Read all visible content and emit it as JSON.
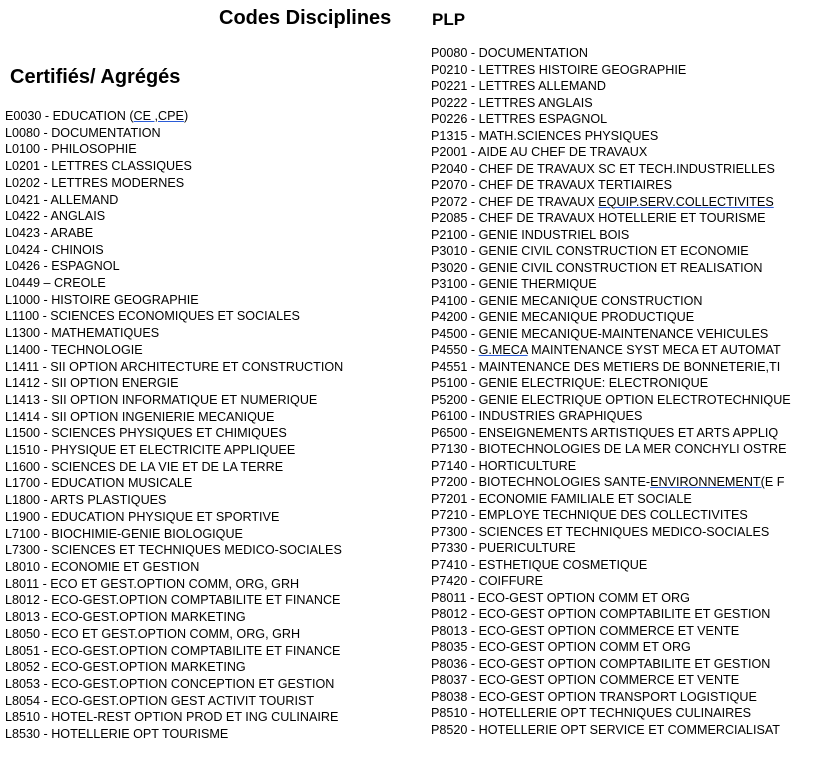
{
  "header": {
    "title": "Codes Disciplines"
  },
  "certifies": {
    "title": "Certifiés/ Agrégés",
    "items": [
      {
        "pre": "E0030 - EDUCATION (",
        "ul": "CE ,CPE",
        "post": ")"
      },
      {
        "pre": "L0080 - DOCUMENTATION"
      },
      {
        "pre": "L0100 - PHILOSOPHIE"
      },
      {
        "pre": "L0201 - LETTRES CLASSIQUES"
      },
      {
        "pre": "L0202 - LETTRES MODERNES"
      },
      {
        "pre": "L0421 - ALLEMAND"
      },
      {
        "pre": "L0422 - ANGLAIS"
      },
      {
        "pre": "L0423 - ARABE"
      },
      {
        "pre": "L0424 - CHINOIS"
      },
      {
        "pre": "L0426 - ESPAGNOL"
      },
      {
        "pre": "L0449 – CREOLE"
      },
      {
        "pre": "L1000 - HISTOIRE GEOGRAPHIE"
      },
      {
        "pre": "L1100 - SCIENCES ECONOMIQUES ET SOCIALES"
      },
      {
        "pre": "L1300 - MATHEMATIQUES"
      },
      {
        "pre": "L1400 - TECHNOLOGIE"
      },
      {
        "pre": "L1411 - SII OPTION ARCHITECTURE ET CONSTRUCTION"
      },
      {
        "pre": "L1412 - SII OPTION ENERGIE"
      },
      {
        "pre": "L1413 - SII OPTION INFORMATIQUE ET NUMERIQUE"
      },
      {
        "pre": "L1414 - SII OPTION INGENIERIE MECANIQUE"
      },
      {
        "pre": "L1500 - SCIENCES PHYSIQUES ET CHIMIQUES"
      },
      {
        "pre": "L1510 - PHYSIQUE ET ELECTRICITE APPLIQUEE"
      },
      {
        "pre": "L1600 - SCIENCES DE LA VIE ET DE LA TERRE"
      },
      {
        "pre": "L1700 - EDUCATION MUSICALE"
      },
      {
        "pre": "L1800 - ARTS PLASTIQUES"
      },
      {
        "pre": "L1900 - EDUCATION PHYSIQUE ET SPORTIVE"
      },
      {
        "pre": "L7100 - BIOCHIMIE-GENIE BIOLOGIQUE"
      },
      {
        "pre": "L7300 - SCIENCES ET TECHNIQUES MEDICO-SOCIALES"
      },
      {
        "pre": "L8010 - ECONOMIE ET GESTION"
      },
      {
        "pre": "L8011 - ECO ET GEST.OPTION COMM, ORG, GRH"
      },
      {
        "pre": "L8012 - ECO-GEST.OPTION COMPTABILITE ET FINANCE"
      },
      {
        "pre": "L8013 - ECO-GEST.OPTION MARKETING"
      },
      {
        "pre": "L8050 - ECO ET GEST.OPTION COMM, ORG, GRH"
      },
      {
        "pre": "L8051 - ECO-GEST.OPTION COMPTABILITE ET FINANCE"
      },
      {
        "pre": "L8052 - ECO-GEST.OPTION MARKETING"
      },
      {
        "pre": "L8053 - ECO-GEST.OPTION CONCEPTION ET GESTION"
      },
      {
        "pre": "L8054 - ECO-GEST.OPTION GEST ACTIVIT TOURIST"
      },
      {
        "pre": "L8510 - HOTEL-REST OPTION PROD ET ING CULINAIRE"
      },
      {
        "pre": "L8530 - HOTELLERIE OPT TOURISME"
      }
    ]
  },
  "plp": {
    "title": "PLP",
    "items": [
      {
        "pre": "P0080 - DOCUMENTATION"
      },
      {
        "pre": "P0210 - LETTRES HISTOIRE GEOGRAPHIE"
      },
      {
        "pre": "P0221 - LETTRES ALLEMAND"
      },
      {
        "pre": "P0222 - LETTRES ANGLAIS"
      },
      {
        "pre": "P0226 - LETTRES ESPAGNOL"
      },
      {
        "pre": "P1315 - MATH.SCIENCES PHYSIQUES"
      },
      {
        "pre": "P2001 - AIDE AU CHEF DE TRAVAUX"
      },
      {
        "pre": "P2040 - CHEF DE TRAVAUX SC ET TECH.INDUSTRIELLES"
      },
      {
        "pre": "P2070 - CHEF DE TRAVAUX TERTIAIRES"
      },
      {
        "pre": "P2072 - CHEF DE TRAVAUX ",
        "ul": "EQUIP.SERV.COLLECTIVITES"
      },
      {
        "pre": "P2085 - CHEF DE TRAVAUX HOTELLERIE ET TOURISME"
      },
      {
        "pre": "P2100 - GENIE INDUSTRIEL BOIS"
      },
      {
        "pre": "P3010 - GENIE CIVIL CONSTRUCTION ET ECONOMIE"
      },
      {
        "pre": "P3020 - GENIE CIVIL CONSTRUCTION ET REALISATION"
      },
      {
        "pre": "P3100 - GENIE THERMIQUE"
      },
      {
        "pre": "P4100 - GENIE MECANIQUE CONSTRUCTION"
      },
      {
        "pre": "P4200 - GENIE MECANIQUE PRODUCTIQUE"
      },
      {
        "pre": "P4500 - GENIE MECANIQUE-MAINTENANCE VEHICULES"
      },
      {
        "pre": "P4550 - ",
        "ul": "G.MECA",
        "post": " MAINTENANCE SYST MECA ET AUTOMAT"
      },
      {
        "pre": "P4551 - MAINTENANCE DES METIERS DE BONNETERIE,TI"
      },
      {
        "pre": "P5100 - GENIE ELECTRIQUE: ELECTRONIQUE"
      },
      {
        "pre": "P5200 - GENIE ELECTRIQUE OPTION ELECTROTECHNIQUE"
      },
      {
        "pre": "P6100 - INDUSTRIES GRAPHIQUES"
      },
      {
        "pre": "P6500 - ENSEIGNEMENTS ARTISTIQUES ET ARTS APPLIQ"
      },
      {
        "pre": "P7130 - BIOTECHNOLOGIES DE LA MER CONCHYLI OSTRE"
      },
      {
        "pre": "P7140 - HORTICULTURE"
      },
      {
        "pre": "P7200 - BIOTECHNOLOGIES SANTE-",
        "ul": "ENVIRONNEMENT(",
        "post": "E F"
      },
      {
        "pre": "P7201 - ECONOMIE FAMILIALE ET SOCIALE"
      },
      {
        "pre": "P7210 - EMPLOYE TECHNIQUE DES COLLECTIVITES"
      },
      {
        "pre": "P7300 - SCIENCES ET TECHNIQUES MEDICO-SOCIALES"
      },
      {
        "pre": "P7330 - PUERICULTURE"
      },
      {
        "pre": "P7410 - ESTHETIQUE COSMETIQUE"
      },
      {
        "pre": "P7420 - COIFFURE"
      },
      {
        "pre": "P8011 - ECO-GEST OPTION COMM ET ORG"
      },
      {
        "pre": "P8012 - ECO-GEST OPTION COMPTABILITE ET GESTION"
      },
      {
        "pre": "P8013 - ECO-GEST OPTION COMMERCE ET VENTE"
      },
      {
        "pre": "P8035 - ECO-GEST OPTION COMM ET ORG"
      },
      {
        "pre": "P8036 - ECO-GEST OPTION COMPTABILITE ET GESTION"
      },
      {
        "pre": "P8037 - ECO-GEST OPTION COMMERCE ET VENTE"
      },
      {
        "pre": "P8038 - ECO-GEST OPTION TRANSPORT LOGISTIQUE"
      },
      {
        "pre": "P8510 - HOTELLERIE OPT TECHNIQUES CULINAIRES"
      },
      {
        "pre": "P8520 - HOTELLERIE OPT SERVICE ET COMMERCIALISAT"
      }
    ]
  }
}
